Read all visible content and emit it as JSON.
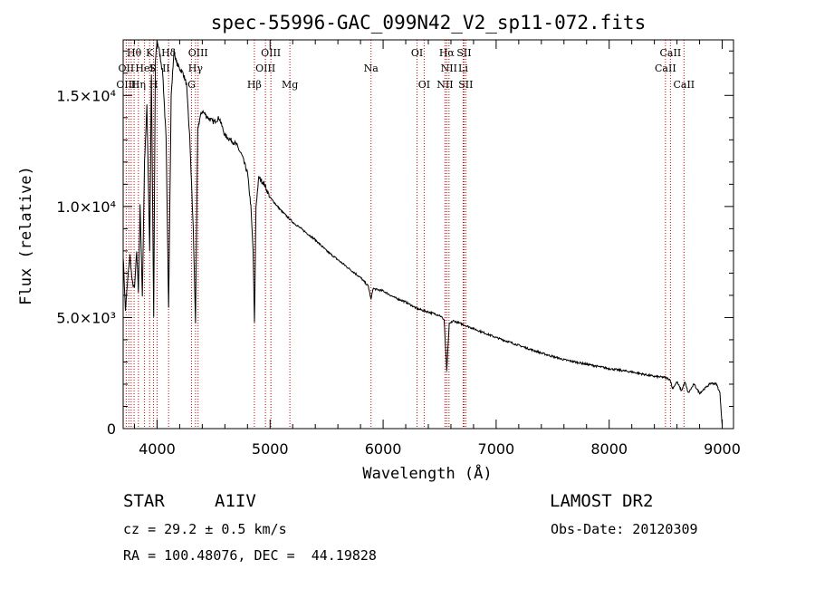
{
  "chart_data": {
    "type": "line",
    "title": "spec-55996-GAC_099N42_V2_sp11-072.fits",
    "xlabel": "Wavelength (Å)",
    "ylabel": "Flux (relative)",
    "xlim": [
      3700,
      9100
    ],
    "ylim": [
      0,
      17500
    ],
    "x_ticks": [
      4000,
      5000,
      6000,
      7000,
      8000,
      9000
    ],
    "y_ticks": [
      {
        "value": 0,
        "label": "0"
      },
      {
        "value": 5000,
        "label": "5.0×10³"
      },
      {
        "value": 10000,
        "label": "1.0×10⁴"
      },
      {
        "value": 15000,
        "label": "1.5×10⁴"
      }
    ],
    "series": [
      {
        "x": [
          3700,
          3720,
          3740,
          3760,
          3780,
          3800,
          3820,
          3835,
          3850,
          3870,
          3889,
          3910,
          3935,
          3950,
          3970,
          3985,
          4000,
          4020,
          4050,
          4080,
          4102,
          4125,
          4150,
          4170,
          4200,
          4230,
          4260,
          4290,
          4320,
          4340,
          4360,
          4380,
          4400,
          4450,
          4500,
          4550,
          4600,
          4650,
          4700,
          4750,
          4800,
          4830,
          4850,
          4862,
          4875,
          4900,
          4950,
          5000,
          5100,
          5200,
          5300,
          5400,
          5500,
          5600,
          5700,
          5800,
          5870,
          5893,
          5910,
          6000,
          6100,
          6200,
          6300,
          6400,
          6500,
          6540,
          6563,
          6585,
          6620,
          6700,
          6800,
          6900,
          7000,
          7200,
          7400,
          7600,
          7800,
          8000,
          8200,
          8400,
          8500,
          8540,
          8560,
          8600,
          8640,
          8670,
          8700,
          8750,
          8800,
          8900,
          8950,
          8980,
          9000
        ],
        "y": [
          7800,
          5300,
          6700,
          7800,
          6600,
          6300,
          8000,
          6200,
          10000,
          6000,
          12000,
          14500,
          8000,
          16000,
          5000,
          16500,
          17500,
          17000,
          16000,
          13000,
          5500,
          15000,
          17000,
          16500,
          16200,
          16000,
          15500,
          13000,
          9000,
          4800,
          13500,
          14000,
          14300,
          14000,
          13800,
          14000,
          13200,
          13000,
          12800,
          12300,
          11500,
          10000,
          8000,
          4700,
          10000,
          11300,
          11000,
          10400,
          9800,
          9300,
          8900,
          8500,
          8000,
          7600,
          7200,
          6800,
          6400,
          5800,
          6300,
          6200,
          5900,
          5700,
          5400,
          5250,
          5100,
          4900,
          2600,
          4700,
          4850,
          4700,
          4500,
          4300,
          4100,
          3750,
          3400,
          3100,
          2900,
          2700,
          2550,
          2350,
          2300,
          2200,
          1800,
          2100,
          1700,
          2100,
          1600,
          2000,
          1600,
          2050,
          2000,
          1600,
          150
        ]
      }
    ],
    "spectral_lines": [
      {
        "label": "Hθ",
        "x": 3797,
        "row": 1
      },
      {
        "label": "OII",
        "x": 3727,
        "row": 2
      },
      {
        "label": "OIII",
        "x": 3727,
        "row": 3
      },
      {
        "label": "Hη",
        "x": 3835,
        "row": 3
      },
      {
        "label": "HeI",
        "x": 3889,
        "row": 2
      },
      {
        "label": "K",
        "x": 3934,
        "row": 1
      },
      {
        "label": "S",
        "x": 3960,
        "row": 2
      },
      {
        "label": "H",
        "x": 3969,
        "row": 3
      },
      {
        "label": "Hδ",
        "x": 4102,
        "row": 1
      },
      {
        "label": "II",
        "x": 4080,
        "row": 2
      },
      {
        "label": "OIII",
        "x": 4363,
        "row": 1
      },
      {
        "label": "Hγ",
        "x": 4340,
        "row": 2
      },
      {
        "label": "G",
        "x": 4305,
        "row": 3
      },
      {
        "label": "Hβ",
        "x": 4861,
        "row": 3
      },
      {
        "label": "OIII",
        "x": 5007,
        "row": 1
      },
      {
        "label": "OIII",
        "x": 4959,
        "row": 2
      },
      {
        "label": "Mg",
        "x": 5175,
        "row": 3
      },
      {
        "label": "Na",
        "x": 5893,
        "row": 2
      },
      {
        "label": "OI",
        "x": 6300,
        "row": 1
      },
      {
        "label": "OI",
        "x": 6363,
        "row": 3
      },
      {
        "label": "Hα",
        "x": 6563,
        "row": 1
      },
      {
        "label": "SII",
        "x": 6716,
        "row": 1
      },
      {
        "label": "NII",
        "x": 6583,
        "row": 2
      },
      {
        "label": "Li",
        "x": 6708,
        "row": 2
      },
      {
        "label": "NII",
        "x": 6548,
        "row": 3
      },
      {
        "label": "SII",
        "x": 6731,
        "row": 3
      },
      {
        "label": "CaII",
        "x": 8542,
        "row": 1
      },
      {
        "label": "CaII",
        "x": 8498,
        "row": 2
      },
      {
        "label": "CaII",
        "x": 8662,
        "row": 3
      }
    ],
    "spectral_line_color": "#cc0000",
    "spectral_line_positions": [
      3727,
      3750,
      3771,
      3797,
      3835,
      3889,
      3934,
      3969,
      4000,
      4102,
      4305,
      4340,
      4363,
      4861,
      4959,
      5007,
      5175,
      5893,
      6300,
      6363,
      6548,
      6563,
      6583,
      6708,
      6716,
      6731,
      8498,
      8542,
      8662
    ]
  },
  "info": {
    "object_class": "STAR",
    "subclass": "A1IV",
    "survey": "LAMOST DR2",
    "cz": "cz = 29.2 ± 0.5 km/s",
    "obs_date": "Obs-Date: 20120309",
    "coords": "RA = 100.48076, DEC =  44.19828"
  }
}
